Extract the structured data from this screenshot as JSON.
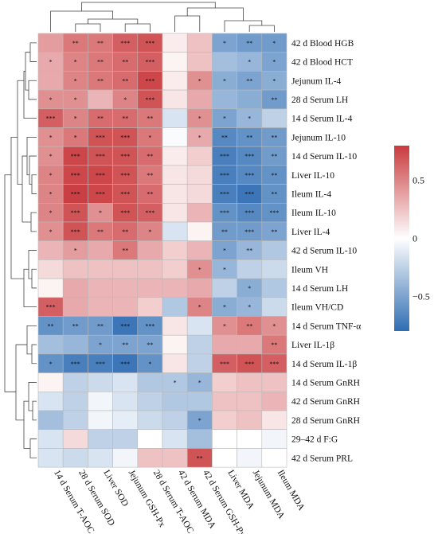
{
  "chart_data": {
    "type": "heatmap",
    "title": "",
    "rows": [
      "42 d Blood HGB",
      "42 d Blood HCT",
      "Jejunum IL-4",
      "28 d Serum LH",
      "14 d Serum IL-4",
      "Jejunum IL-10",
      "14 d Serum IL-10",
      "Liver IL-10",
      "Ileum IL-4",
      "Ileum IL-10",
      "Liver IL-4",
      "42 d Serum IL-10",
      "Ileum VH",
      "14 d Serum LH",
      "Ileum VH/CD",
      "14 d Serum TNF-α",
      "Liver IL-1β",
      "14 d Serum IL-1β",
      "14 d Serum GnRH",
      "42 d Serum GnRH",
      "28 d Serum GnRH",
      "29–42 d F:G",
      "42 d Serum PRL"
    ],
    "columns": [
      "14 d Serum T-AOC",
      "28 d Serum SOD",
      "Liver SOD",
      "Jejunum GSH-Px",
      "28 d Serum T-AOC",
      "42 d Serum MDA",
      "42 d Serum GSH-Px",
      "Liver MDA",
      "Jejunum MDA",
      "Ileum MDA"
    ],
    "values": [
      [
        0.4,
        0.55,
        0.55,
        0.65,
        0.7,
        0.08,
        0.25,
        -0.5,
        -0.55,
        -0.55
      ],
      [
        0.35,
        0.5,
        0.55,
        0.6,
        0.65,
        0.05,
        0.25,
        -0.35,
        -0.4,
        -0.5
      ],
      [
        0.35,
        0.5,
        0.55,
        0.6,
        0.75,
        0.08,
        0.45,
        -0.45,
        -0.5,
        -0.45
      ],
      [
        0.45,
        0.45,
        0.3,
        0.5,
        0.7,
        0.1,
        0.35,
        -0.4,
        -0.45,
        -0.55
      ],
      [
        0.65,
        0.5,
        0.6,
        0.6,
        0.55,
        -0.15,
        0.45,
        -0.5,
        -0.4,
        -0.25
      ],
      [
        0.45,
        0.55,
        0.7,
        0.7,
        0.55,
        -0.02,
        0.35,
        -0.65,
        -0.6,
        -0.55
      ],
      [
        0.45,
        0.75,
        0.7,
        0.7,
        0.6,
        0.08,
        0.2,
        -0.7,
        -0.65,
        -0.55
      ],
      [
        0.5,
        0.75,
        0.75,
        0.7,
        0.55,
        0.1,
        0.15,
        -0.7,
        -0.65,
        -0.6
      ],
      [
        0.5,
        0.78,
        0.75,
        0.7,
        0.6,
        0.1,
        0.15,
        -0.7,
        -0.75,
        -0.6
      ],
      [
        0.5,
        0.7,
        0.45,
        0.7,
        0.65,
        0.1,
        0.3,
        -0.6,
        -0.65,
        -0.6
      ],
      [
        0.45,
        0.7,
        0.55,
        0.6,
        0.5,
        -0.15,
        0.05,
        -0.55,
        -0.55,
        -0.5
      ],
      [
        0.3,
        0.4,
        0.35,
        0.55,
        0.35,
        0.2,
        0.3,
        -0.5,
        -0.4,
        -0.3
      ],
      [
        0.15,
        0.25,
        0.25,
        0.25,
        0.25,
        0.2,
        0.45,
        -0.4,
        -0.25,
        -0.2
      ],
      [
        0.05,
        0.35,
        0.3,
        0.3,
        0.3,
        0.3,
        0.35,
        -0.25,
        -0.45,
        -0.3
      ],
      [
        0.65,
        0.35,
        0.3,
        0.3,
        0.2,
        -0.3,
        0.5,
        -0.45,
        -0.4,
        -0.2
      ],
      [
        -0.6,
        -0.55,
        -0.55,
        -0.75,
        -0.6,
        0.1,
        -0.15,
        0.45,
        0.55,
        0.45
      ],
      [
        -0.35,
        -0.4,
        -0.5,
        -0.5,
        -0.5,
        0.05,
        -0.25,
        0.35,
        0.35,
        0.55
      ],
      [
        -0.6,
        -0.7,
        -0.7,
        -0.75,
        -0.6,
        0.1,
        -0.25,
        0.65,
        0.7,
        0.65
      ],
      [
        0.05,
        -0.25,
        -0.2,
        -0.15,
        -0.3,
        -0.3,
        -0.4,
        0.2,
        0.25,
        0.25
      ],
      [
        -0.15,
        -0.25,
        -0.05,
        -0.15,
        -0.25,
        -0.3,
        -0.3,
        0.25,
        0.25,
        0.3
      ],
      [
        -0.35,
        -0.25,
        -0.05,
        -0.1,
        -0.2,
        -0.25,
        -0.5,
        0.2,
        0.25,
        0.1
      ],
      [
        -0.15,
        0.15,
        -0.25,
        -0.25,
        0.0,
        -0.15,
        -0.35,
        0.0,
        0.0,
        -0.05
      ],
      [
        -0.15,
        -0.2,
        -0.15,
        -0.05,
        0.25,
        0.25,
        0.7,
        0.0,
        -0.05,
        0.0
      ]
    ],
    "significance": [
      [
        "",
        "**",
        "**",
        "***",
        "***",
        "",
        "",
        "*",
        "**",
        "*"
      ],
      [
        "*",
        "*",
        "**",
        "**",
        "***",
        "",
        "",
        "",
        "*",
        "*"
      ],
      [
        "",
        "*",
        "**",
        "**",
        "***",
        "",
        "*",
        "*",
        "**",
        "*"
      ],
      [
        "*",
        "*",
        "",
        "*",
        "***",
        "",
        "",
        "",
        "",
        "**"
      ],
      [
        "***",
        "*",
        "**",
        "**",
        "**",
        "",
        "*",
        "*",
        "*",
        ""
      ],
      [
        "*",
        "*",
        "***",
        "***",
        "*",
        "",
        "*",
        "**",
        "**",
        "**"
      ],
      [
        "*",
        "***",
        "***",
        "***",
        "**",
        "",
        "",
        "***",
        "***",
        "**"
      ],
      [
        "*",
        "***",
        "***",
        "***",
        "**",
        "",
        "",
        "***",
        "***",
        "**"
      ],
      [
        "*",
        "***",
        "***",
        "***",
        "**",
        "",
        "",
        "***",
        "***",
        "**"
      ],
      [
        "*",
        "***",
        "*",
        "***",
        "***",
        "",
        "",
        "***",
        "***",
        "***"
      ],
      [
        "*",
        "***",
        "**",
        "**",
        "*",
        "",
        "",
        "**",
        "***",
        "**"
      ],
      [
        "",
        "*",
        "",
        "**",
        "",
        "",
        "",
        "*",
        "**",
        ""
      ],
      [
        "",
        "",
        "",
        "",
        "",
        "",
        "*",
        "*",
        "",
        ""
      ],
      [
        "",
        "",
        "",
        "",
        "",
        "",
        "",
        "",
        "*",
        ""
      ],
      [
        "***",
        "",
        "",
        "",
        "",
        "",
        "*",
        "*",
        "*",
        ""
      ],
      [
        "**",
        "**",
        "**",
        "***",
        "***",
        "",
        "",
        "*",
        "**",
        "*"
      ],
      [
        "",
        "",
        "*",
        "**",
        "**",
        "",
        "",
        "",
        "",
        "**"
      ],
      [
        "*",
        "***",
        "***",
        "***",
        "*",
        "",
        "",
        "***",
        "***",
        "***"
      ],
      [
        "",
        "",
        "",
        "",
        "",
        "*",
        "*",
        "",
        "",
        ""
      ],
      [
        "",
        "",
        "",
        "",
        "",
        "",
        "",
        "",
        "",
        ""
      ],
      [
        "",
        "",
        "",
        "",
        "",
        "",
        "*",
        "",
        "",
        ""
      ],
      [
        "",
        "",
        "",
        "",
        "",
        "",
        "",
        "",
        "",
        ""
      ],
      [
        "",
        "",
        "",
        "",
        "",
        "",
        "**",
        "",
        "",
        ""
      ]
    ],
    "color_scale": {
      "min": -0.8,
      "max": 0.8,
      "low_color": "#2f6db3",
      "mid_color": "#ffffff",
      "high_color": "#c93a3e",
      "ticks": [
        0.5,
        0,
        -0.5
      ],
      "tick_labels": [
        "0.5",
        "0",
        "−0.5"
      ]
    },
    "legend_position": "right"
  }
}
